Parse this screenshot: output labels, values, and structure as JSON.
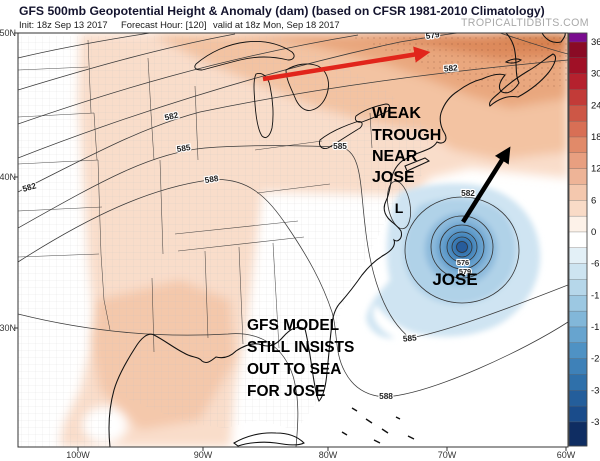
{
  "header": {
    "title": "GFS 500mb Geopotential Height & Anomaly (dam) (based on CFSR 1981-2010 Climatology)",
    "init_label": "Init: 18z Sep 13 2017",
    "forecast_hour": "Forecast Hour: [120]",
    "valid_label": "valid at 18z Mon, Sep 18 2017",
    "watermark": "TROPICALTIDBITS.COM"
  },
  "map": {
    "lat_labels": [
      "50N",
      "40N",
      "30N"
    ],
    "lon_labels": [
      "100W",
      "90W",
      "80W",
      "70W",
      "60W"
    ],
    "contour_labels": {
      "top_579": "579",
      "left_582": "582",
      "mid_582": "582",
      "ne_582": "582",
      "mid_585": "585",
      "east_585": "585",
      "mid_588": "588",
      "jose_582": "582",
      "jose_576": "576",
      "jose_579": "579",
      "south_585": "585",
      "south_588": "588"
    },
    "annotations": {
      "trough_lines": [
        "WEAK",
        "TROUGH",
        "NEAR",
        "JOSE"
      ],
      "low_marker": "L",
      "storm_label": "JOSE",
      "model_lines": [
        "GFS MODEL",
        "STILL INSISTS",
        "OUT TO SEA",
        "FOR JOSE"
      ]
    }
  },
  "colorbar": {
    "tick_labels": [
      "36",
      "30",
      "24",
      "18",
      "12",
      "6",
      "0",
      "-6",
      "-12",
      "-18",
      "-24",
      "-30",
      "-36"
    ],
    "segments": [
      "#7a0c8f",
      "#8a0b25",
      "#a01026",
      "#b5212e",
      "#c23b38",
      "#cd5746",
      "#d86f55",
      "#e18a69",
      "#e89f80",
      "#eeb497",
      "#f4c8ae",
      "#f9dbc7",
      "#fdf2e9",
      "#ffffff",
      "#e3f0f7",
      "#cde4f1",
      "#b6d7ea",
      "#9cc8e2",
      "#82b7d9",
      "#67a4cf",
      "#4f92c4",
      "#3e81b8",
      "#2f70aa",
      "#245e9b",
      "#1a4c8b",
      "#0f2d62"
    ]
  },
  "colors": {
    "red_arrow": "#e1251b",
    "black_arrow": "#000000",
    "title_text": "#14142e",
    "subtitle_text": "#1a1a1a",
    "watermark_text": "#a9a9a9",
    "anomaly_pos_light": "#f9ddca",
    "anomaly_pos_mid": "#f3c3a2",
    "anomaly_pos_deep": "#e9a77e",
    "anomaly_pos_deeper": "#dd8a5c",
    "anomaly_pos_deepest": "#d1773f",
    "anomaly_neg_light": "#cfe4f2",
    "anomaly_neg_mid": "#8cbadc",
    "anomaly_neg_deep": "#2f6dac",
    "contour_line": "#3a3a3a"
  }
}
